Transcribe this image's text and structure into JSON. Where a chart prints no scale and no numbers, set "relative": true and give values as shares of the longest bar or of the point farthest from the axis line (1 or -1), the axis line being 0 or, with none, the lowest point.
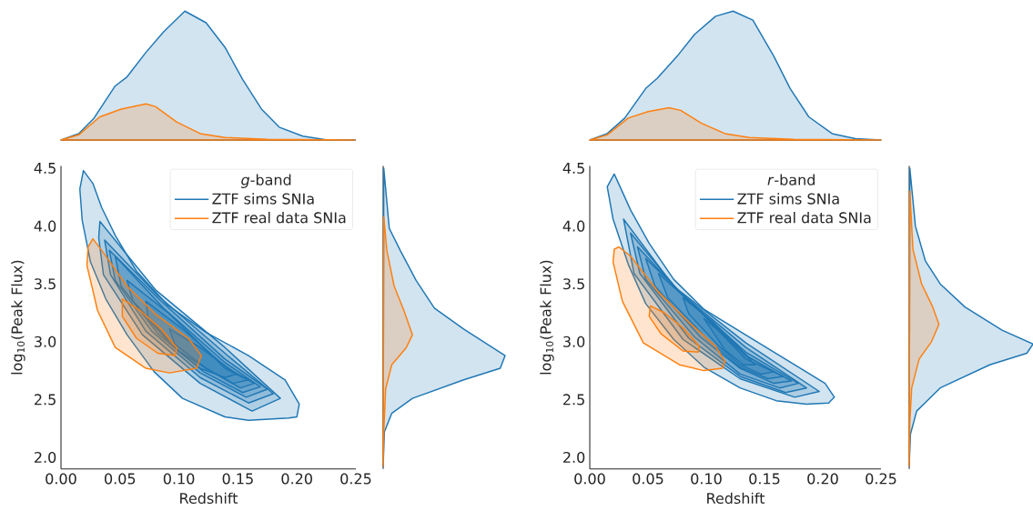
{
  "chart_data": [
    {
      "type": "area",
      "relative": true,
      "xlim": [
        0,
        0.25
      ],
      "series": [
        {
          "color": "#1f77b4",
          "x": [
            0.0,
            0.015,
            0.028,
            0.046,
            0.056,
            0.072,
            0.087,
            0.105,
            0.123,
            0.139,
            0.154,
            0.17,
            0.185,
            0.205,
            0.226,
            0.249
          ],
          "values": [
            0,
            0.05,
            0.17,
            0.42,
            0.49,
            0.68,
            0.84,
            1,
            0.91,
            0.72,
            0.47,
            0.24,
            0.1,
            0.03,
            0.0,
            0
          ]
        },
        {
          "color": "#ff7f0e",
          "x": [
            0.0,
            0.015,
            0.033,
            0.051,
            0.072,
            0.08,
            0.098,
            0.118,
            0.139,
            0.175,
            0.249
          ],
          "values": [
            0,
            0.04,
            0.18,
            0.24,
            0.28,
            0.26,
            0.14,
            0.05,
            0.02,
            0.005,
            0
          ]
        }
      ]
    },
    {
      "type": "area",
      "relative": true,
      "xlim": [
        0,
        0.25
      ],
      "series": [
        {
          "color": "#1f77b4",
          "x": [
            0.0,
            0.015,
            0.03,
            0.048,
            0.058,
            0.075,
            0.09,
            0.108,
            0.123,
            0.14,
            0.158,
            0.172,
            0.188,
            0.208,
            0.228,
            0.25
          ],
          "values": [
            0,
            0.05,
            0.17,
            0.4,
            0.48,
            0.65,
            0.82,
            0.96,
            1,
            0.93,
            0.65,
            0.4,
            0.18,
            0.05,
            0.01,
            0
          ]
        },
        {
          "color": "#ff7f0e",
          "x": [
            0,
            0.015,
            0.033,
            0.05,
            0.068,
            0.078,
            0.096,
            0.116,
            0.137,
            0.175,
            0.25
          ],
          "values": [
            0,
            0.04,
            0.17,
            0.22,
            0.25,
            0.23,
            0.13,
            0.05,
            0.02,
            0.005,
            0
          ]
        }
      ]
    },
    {
      "type": "line",
      "xlabel": "Redshift",
      "ylabel": "log$_{10}$(Peak Flux)",
      "legend_title": "*g*-band",
      "legend": "top right",
      "xlim": [
        0,
        0.25
      ],
      "ylim": [
        1.9,
        4.52
      ],
      "xticks": [
        {
          "value": 0,
          "label": "0.00"
        },
        {
          "value": 0.05,
          "label": "0.05"
        },
        {
          "value": 0.1,
          "label": "0.10"
        },
        {
          "value": 0.15,
          "label": "0.15"
        },
        {
          "value": 0.2,
          "label": "0.20"
        },
        {
          "value": 0.25,
          "label": "0.25"
        }
      ],
      "yticks": [
        {
          "value": 2,
          "label": "2.0"
        },
        2.5,
        {
          "value": 3,
          "label": "3.0"
        },
        3.5,
        {
          "value": 4,
          "label": "4.0"
        },
        4.5
      ],
      "series": [
        {
          "name": "ZTF sims SNIa",
          "color": "#1f77b4",
          "type": "area",
          "x": [
            0.019,
            0.027,
            0.0345,
            0.046,
            0.064,
            0.09,
            0.123,
            0.159,
            0.19,
            0.202,
            0.2,
            0.193,
            0.159,
            0.139,
            0.103,
            0.079,
            0.056,
            0.038,
            0.025,
            0.018,
            0.016
          ],
          "values": [
            4.48,
            4.37,
            4.16,
            3.92,
            3.61,
            3.32,
            3.08,
            2.88,
            2.67,
            2.46,
            2.35,
            2.34,
            2.32,
            2.35,
            2.51,
            2.74,
            3.06,
            3.37,
            3.69,
            4.05,
            4.32
          ]
        },
        {
          "color": "#1f77b4",
          "type": "area",
          "x": [
            0.033,
            0.08,
            0.139,
            0.186,
            0.162,
            0.118,
            0.069,
            0.036,
            0.032
          ],
          "values": [
            4.04,
            3.45,
            2.95,
            2.51,
            2.4,
            2.64,
            3.06,
            3.58,
            3.9
          ]
        },
        {
          "color": "#1f77b4",
          "type": "area",
          "x": [
            0.037,
            0.082,
            0.139,
            0.18,
            0.159,
            0.118,
            0.072,
            0.042
          ],
          "values": [
            3.88,
            3.4,
            2.9,
            2.55,
            2.47,
            2.69,
            3.09,
            3.58
          ]
        },
        {
          "color": "#1f77b4",
          "type": "area",
          "x": [
            0.041,
            0.085,
            0.139,
            0.175,
            0.157,
            0.118,
            0.077,
            0.046
          ],
          "values": [
            3.79,
            3.35,
            2.85,
            2.59,
            2.52,
            2.73,
            3.09,
            3.53
          ]
        },
        {
          "color": "#1f77b4",
          "type": "area",
          "x": [
            0.046,
            0.087,
            0.139,
            0.169,
            0.154,
            0.121,
            0.082,
            0.051
          ],
          "values": [
            3.74,
            3.29,
            2.82,
            2.61,
            2.56,
            2.74,
            3.07,
            3.48
          ]
        },
        {
          "color": "#1f77b4",
          "type": "area",
          "x": [
            0.056,
            0.092,
            0.139,
            0.164,
            0.152,
            0.123,
            0.09,
            0.061
          ],
          "values": [
            3.53,
            3.24,
            2.77,
            2.64,
            2.6,
            2.77,
            3.03,
            3.35
          ]
        },
        {
          "color": "#1f77b4",
          "type": "area",
          "x": [
            0.072,
            0.103,
            0.141,
            0.159,
            0.146,
            0.123,
            0.098,
            0.074
          ],
          "values": [
            3.35,
            3.11,
            2.77,
            2.67,
            2.64,
            2.77,
            2.93,
            3.19
          ]
        },
        {
          "color": "#1f77b4",
          "type": "area",
          "x": [
            0.092,
            0.118,
            0.149,
            0.139,
            0.118,
            0.098
          ],
          "values": [
            3.11,
            2.95,
            2.72,
            2.69,
            2.77,
            2.93
          ]
        },
        {
          "name": "ZTF real data SNIa",
          "color": "#ff7f0e",
          "type": "area",
          "x": [
            0.027,
            0.036,
            0.056,
            0.08,
            0.108,
            0.119,
            0.115,
            0.092,
            0.072,
            0.046,
            0.031,
            0.022,
            0.023
          ],
          "values": [
            3.89,
            3.77,
            3.48,
            3.24,
            3.03,
            2.88,
            2.77,
            2.73,
            2.77,
            2.95,
            3.27,
            3.66,
            3.82
          ]
        },
        {
          "color": "#ff7f0e",
          "type": "area",
          "x": [
            0.052,
            0.067,
            0.085,
            0.098,
            0.097,
            0.082,
            0.064,
            0.052
          ],
          "values": [
            3.37,
            3.27,
            3.11,
            2.95,
            2.88,
            2.9,
            3.03,
            3.22
          ]
        }
      ]
    },
    {
      "type": "area",
      "relative": true,
      "orientation": "horizontal",
      "ylim": [
        1.9,
        4.52
      ],
      "series": [
        {
          "color": "#1f77b4",
          "x": [
            4.5,
            3.98,
            3.79,
            3.53,
            3.29,
            3.11,
            2.88,
            2.77,
            2.67,
            2.51,
            2.38,
            2.22,
            1.93
          ],
          "values": [
            0.005,
            0.05,
            0.14,
            0.27,
            0.42,
            0.66,
            1,
            0.96,
            0.66,
            0.24,
            0.07,
            0.01,
            0
          ]
        },
        {
          "color": "#ff7f0e",
          "x": [
            4.08,
            3.79,
            3.48,
            3.27,
            3.06,
            2.95,
            2.8,
            2.59,
            2.22,
            1.93
          ],
          "values": [
            0.005,
            0.03,
            0.09,
            0.17,
            0.24,
            0.19,
            0.07,
            0.02,
            0.005,
            0
          ]
        }
      ]
    },
    {
      "type": "line",
      "xlabel": "Redshift",
      "ylabel": "log$_{10}$(Peak Flux)",
      "legend_title": "*r*-band",
      "legend": "top right",
      "xlim": [
        0,
        0.25
      ],
      "ylim": [
        1.9,
        4.52
      ],
      "xticks": [
        {
          "value": 0,
          "label": "0.00"
        },
        {
          "value": 0.05,
          "label": "0.05"
        },
        {
          "value": 0.1,
          "label": "0.10"
        },
        {
          "value": 0.15,
          "label": "0.15"
        },
        {
          "value": 0.2,
          "label": "0.20"
        },
        {
          "value": 0.25,
          "label": "0.25"
        }
      ],
      "yticks": [
        {
          "value": 2,
          "label": "2.0"
        },
        2.5,
        {
          "value": 3,
          "label": "3.0"
        },
        3.5,
        {
          "value": 4,
          "label": "4.0"
        },
        4.5
      ],
      "series": [
        {
          "name": "ZTF sims SNIa",
          "color": "#1f77b4",
          "type": "area",
          "x": [
            0.021,
            0.026,
            0.035,
            0.051,
            0.072,
            0.098,
            0.132,
            0.171,
            0.202,
            0.21,
            0.205,
            0.186,
            0.16,
            0.129,
            0.098,
            0.072,
            0.048,
            0.033,
            0.02,
            0.015
          ],
          "values": [
            4.45,
            4.34,
            4.14,
            3.85,
            3.54,
            3.28,
            3.07,
            2.83,
            2.64,
            2.52,
            2.47,
            2.46,
            2.49,
            2.6,
            2.78,
            3.02,
            3.33,
            3.67,
            4.06,
            4.34
          ]
        },
        {
          "color": "#1f77b4",
          "type": "area",
          "x": [
            0.029,
            0.072,
            0.134,
            0.197,
            0.176,
            0.129,
            0.08,
            0.038
          ],
          "values": [
            4.06,
            3.48,
            2.99,
            2.57,
            2.52,
            2.68,
            3.02,
            3.59
          ]
        },
        {
          "color": "#1f77b4",
          "type": "area",
          "x": [
            0.035,
            0.077,
            0.134,
            0.186,
            0.168,
            0.129,
            0.085,
            0.043
          ],
          "values": [
            3.94,
            3.43,
            2.95,
            2.6,
            2.56,
            2.7,
            3.03,
            3.59
          ]
        },
        {
          "color": "#1f77b4",
          "type": "area",
          "x": [
            0.041,
            0.082,
            0.134,
            0.179,
            0.163,
            0.129,
            0.09,
            0.048
          ],
          "values": [
            3.82,
            3.38,
            2.91,
            2.64,
            2.6,
            2.72,
            3.04,
            3.54
          ]
        },
        {
          "color": "#1f77b4",
          "type": "area",
          "x": [
            0.048,
            0.088,
            0.134,
            0.173,
            0.158,
            0.129,
            0.095,
            0.056
          ],
          "values": [
            3.72,
            3.33,
            2.88,
            2.66,
            2.64,
            2.77,
            3.04,
            3.48
          ]
        },
        {
          "color": "#1f77b4",
          "type": "area",
          "x": [
            0.059,
            0.093,
            0.134,
            0.166,
            0.153,
            0.129,
            0.101,
            0.067
          ],
          "values": [
            3.59,
            3.28,
            2.85,
            2.7,
            2.68,
            2.78,
            3.02,
            3.38
          ]
        },
        {
          "color": "#1f77b4",
          "type": "area",
          "x": [
            0.08,
            0.106,
            0.136,
            0.158,
            0.147,
            0.129,
            0.11,
            0.085
          ],
          "values": [
            3.38,
            3.17,
            2.87,
            2.74,
            2.72,
            2.8,
            2.97,
            3.24
          ]
        },
        {
          "color": "#1f77b4",
          "type": "area",
          "x": [
            0.098,
            0.116,
            0.136,
            0.142,
            0.132,
            0.116
          ],
          "values": [
            3.2,
            3.05,
            2.86,
            2.8,
            2.8,
            2.93
          ]
        },
        {
          "name": "ZTF real data SNIa",
          "color": "#ff7f0e",
          "type": "area",
          "x": [
            0.025,
            0.035,
            0.059,
            0.085,
            0.108,
            0.116,
            0.114,
            0.098,
            0.077,
            0.046,
            0.028,
            0.02,
            0.021
          ],
          "values": [
            3.82,
            3.74,
            3.43,
            3.17,
            2.96,
            2.83,
            2.77,
            2.75,
            2.8,
            2.99,
            3.35,
            3.69,
            3.8
          ]
        },
        {
          "color": "#ff7f0e",
          "type": "area",
          "x": [
            0.052,
            0.064,
            0.08,
            0.094,
            0.093,
            0.08,
            0.061,
            0.051
          ],
          "values": [
            3.31,
            3.25,
            3.12,
            2.96,
            2.91,
            2.92,
            3.07,
            3.22
          ]
        }
      ]
    },
    {
      "type": "area",
      "relative": true,
      "orientation": "horizontal",
      "ylim": [
        1.9,
        4.52
      ],
      "series": [
        {
          "color": "#1f77b4",
          "x": [
            4.5,
            4.0,
            3.7,
            3.5,
            3.3,
            3.1,
            2.98,
            2.9,
            2.8,
            2.6,
            2.4,
            2.2,
            1.93
          ],
          "values": [
            0.005,
            0.05,
            0.13,
            0.25,
            0.45,
            0.75,
            1.0,
            0.95,
            0.65,
            0.25,
            0.06,
            0.01,
            0
          ]
        },
        {
          "color": "#ff7f0e",
          "x": [
            4.3,
            3.8,
            3.5,
            3.3,
            3.15,
            3.0,
            2.85,
            2.6,
            2.3,
            1.93
          ],
          "values": [
            0.005,
            0.03,
            0.1,
            0.19,
            0.24,
            0.18,
            0.08,
            0.02,
            0.005,
            0
          ]
        }
      ]
    }
  ]
}
